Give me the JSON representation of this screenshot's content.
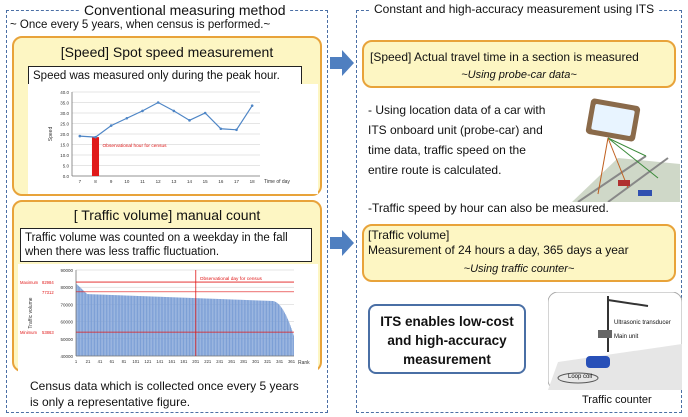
{
  "left": {
    "title": "Conventional measuring method",
    "subtitle": "~ Once every 5 years, when census is performed.~",
    "speed_box": {
      "title": "[Speed]   Spot speed measurement",
      "note": "Speed was measured only during the peak hour."
    },
    "volume_box": {
      "title": "[ Traffic volume]  manual count",
      "note": "Traffic volume was counted on a weekday in the fall when there was less traffic fluctuation."
    },
    "footer": "Census data which is collected once every 5 years is only a representative figure."
  },
  "right": {
    "title": "Constant and high-accuracy measurement  using ITS",
    "speed_box": {
      "title": "[Speed] Actual travel time in a section is measured",
      "subtitle": "~Using probe-car data~"
    },
    "probe_text": "- Using location data of a car with ITS onboard unit (probe-car) and time data, traffic speed on the entire route is calculated.",
    "hourly_text": "-Traffic speed by hour can also be measured.",
    "volume_box": {
      "title": "[Traffic volume]",
      "text": "Measurement of 24 hours a day, 365 days a year",
      "subtitle": "~Using traffic counter~"
    },
    "its_box": "ITS enables low-cost and high-accuracy measurement",
    "counter": {
      "ultrasonic": "Ultrasonic transducer",
      "main_unit": "Main unit",
      "loop_coil": "Loop coil",
      "caption": "Traffic counter"
    }
  },
  "colors": {
    "panel_border": "#4a6fa5",
    "box_fill": "#fdf6c3",
    "box_border": "#e8a33a",
    "arrow": "#4f7fc0"
  },
  "chart_data": [
    {
      "type": "line",
      "x": [
        7,
        8,
        9,
        10,
        11,
        12,
        13,
        14,
        15,
        16,
        17,
        18
      ],
      "y": [
        19,
        18.5,
        24,
        27.5,
        31,
        35,
        31,
        26.5,
        30,
        22.5,
        22,
        33.5
      ],
      "highlight_bar": {
        "x": 8,
        "y": 18.5,
        "label": "Observational hour for census"
      },
      "ylabel": "Speed",
      "xlabel": "Time of day",
      "ylim": [
        0,
        40
      ],
      "yticks": [
        "0.0",
        "5.0",
        "10.0",
        "15.0",
        "20.0",
        "25.0",
        "30.0",
        "35.0",
        "40.0"
      ],
      "xticks": [
        "7",
        "8",
        "9",
        "10",
        "11",
        "12",
        "13",
        "14",
        "15",
        "16",
        "17",
        "18"
      ]
    },
    {
      "type": "bar",
      "description_free": true,
      "ylabel": "Traffic volume",
      "xlabel": "Rank",
      "ylim": [
        40000,
        90000
      ],
      "yticks": [
        "40000",
        "50000",
        "60000",
        "70000",
        "80000",
        "90000"
      ],
      "xticks": [
        "1",
        "21",
        "41",
        "61",
        "81",
        "101",
        "121",
        "141",
        "161",
        "181",
        "201",
        "221",
        "241",
        "261",
        "281",
        "301",
        "321",
        "341",
        "361"
      ],
      "max_label": "Maximum",
      "max_value": "82984",
      "min_label": "Minimum",
      "min_value": "53863",
      "obs_value": "77312",
      "highlight_label": "Observational day for census",
      "highlight_rank": 201,
      "count": 365,
      "values_start": 82000,
      "values_plateau": 72000,
      "values_end": 52000
    }
  ]
}
